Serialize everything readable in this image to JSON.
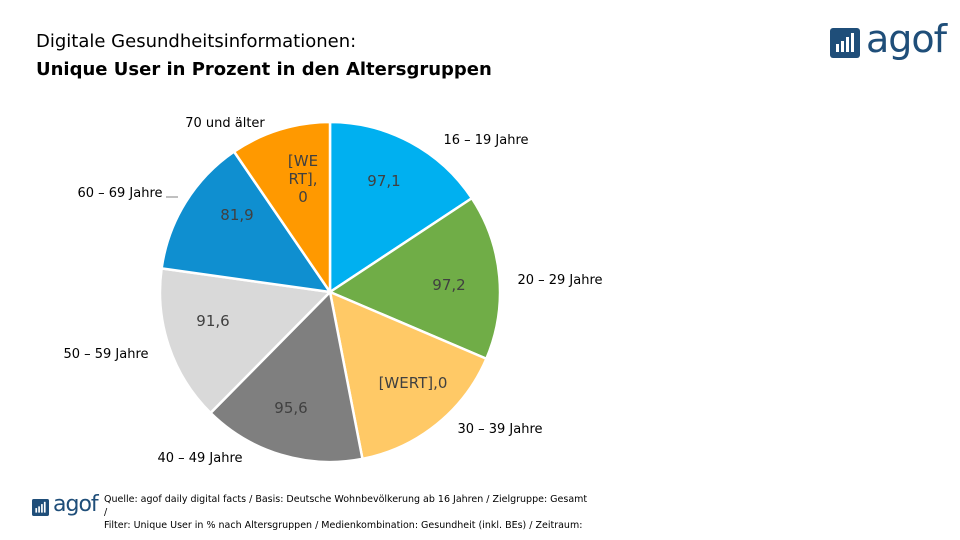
{
  "title": {
    "line1": "Digitale Gesundheitsinformationen:",
    "line2": "Unique User in Prozent in den Altersgruppen"
  },
  "logo": {
    "text": "agof",
    "color": "#1f4e79"
  },
  "footnote": {
    "line1": "Quelle: agof daily digital facts / Basis: Deutsche Wohnbevölkerung ab 16 Jahren / Zielgruppe: Gesamt",
    "line2": "/",
    "line3": "Filter: Unique User in % nach Altersgruppen / Medienkombination: Gesundheit (inkl. BEs) / Zeitraum:"
  },
  "chart_data": {
    "type": "pie",
    "title": "Unique User in Prozent in den Altersgruppen",
    "slices": [
      {
        "category": "16 – 19 Jahre",
        "value": 97.1,
        "data_label": "97,1",
        "color": "#00b0f0",
        "label_color": "#404040"
      },
      {
        "category": "20 – 29 Jahre",
        "value": 97.2,
        "data_label": "97,2",
        "color": "#70ad47",
        "label_color": "#404040"
      },
      {
        "category": "30 – 39 Jahre",
        "value": 96.0,
        "data_label": "[WERT],0",
        "color": "#ffc966",
        "label_color": "#404040"
      },
      {
        "category": "40 – 49 Jahre",
        "value": 95.6,
        "data_label": "95,6",
        "color": "#7f7f7f",
        "label_color": "#404040"
      },
      {
        "category": "50 – 59 Jahre",
        "value": 91.6,
        "data_label": "91,6",
        "color": "#d9d9d9",
        "label_color": "#404040"
      },
      {
        "category": "60 – 69 Jahre",
        "value": 81.9,
        "data_label": "81,9",
        "color": "#0f8fd0",
        "label_color": "#404040"
      },
      {
        "category": "70 und älter",
        "value": 59.0,
        "data_label": "[WE RT], 0",
        "color": "#ff9900",
        "label_color": "#404040"
      }
    ]
  }
}
